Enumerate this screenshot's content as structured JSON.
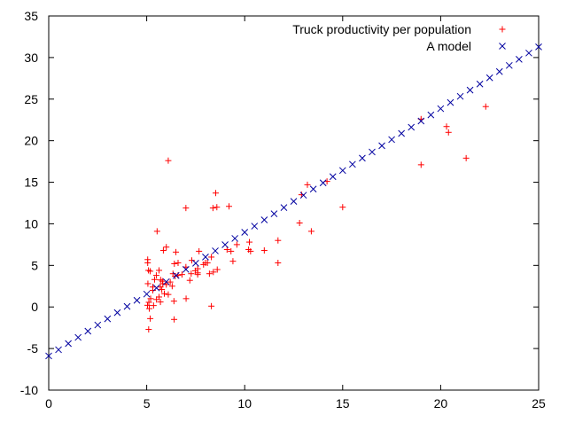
{
  "chart_data": {
    "type": "scatter",
    "title": "",
    "xlabel": "",
    "ylabel": "",
    "xlim": [
      0,
      25
    ],
    "ylim": [
      -10,
      35
    ],
    "xticks": [
      0,
      5,
      10,
      15,
      20,
      25
    ],
    "yticks": [
      -10,
      -5,
      0,
      5,
      10,
      15,
      20,
      25,
      30,
      35
    ],
    "grid": false,
    "legend_position": "top-right",
    "series": [
      {
        "name": "Truck productivity per population",
        "marker": "plus",
        "color": "#ff0000",
        "points": [
          [
            6.1,
            17.6
          ],
          [
            5.53,
            9.1
          ],
          [
            8.52,
            13.7
          ],
          [
            7.0,
            11.9
          ],
          [
            5.85,
            6.8
          ],
          [
            8.38,
            11.9
          ],
          [
            7.48,
            4.35
          ],
          [
            8.58,
            12.0
          ],
          [
            6.49,
            6.6
          ],
          [
            5.05,
            5.7
          ],
          [
            5.71,
            3.25
          ],
          [
            6.34,
            4.0
          ],
          [
            5.11,
            0.56
          ],
          [
            5.49,
            3.8
          ],
          [
            6.41,
            5.2
          ],
          [
            6.39,
            0.7
          ],
          [
            5.18,
            -1.4
          ],
          [
            5.31,
            2.0
          ],
          [
            5.06,
            2.8
          ],
          [
            5.63,
            1.2
          ],
          [
            6.0,
            2.7
          ],
          [
            5.05,
            5.3
          ],
          [
            5.09,
            4.4
          ],
          [
            5.04,
            0.2
          ],
          [
            5.9,
            1.6
          ],
          [
            7.01,
            1.0
          ],
          [
            5.35,
            0.17
          ],
          [
            5.63,
            4.4
          ],
          [
            6.0,
            7.2
          ],
          [
            5.77,
            2.1
          ],
          [
            5.31,
            2.4
          ],
          [
            5.18,
            4.3
          ],
          [
            5.82,
            2.8
          ],
          [
            7.67,
            6.7
          ],
          [
            8.0,
            5.3
          ],
          [
            8.2,
            4.0
          ],
          [
            8.4,
            4.2
          ],
          [
            7.9,
            5.1
          ],
          [
            7.27,
            4.0
          ],
          [
            7.6,
            3.9
          ],
          [
            9.1,
            6.9
          ],
          [
            9.3,
            6.7
          ],
          [
            10.24,
            7.8
          ],
          [
            10.2,
            6.9
          ],
          [
            11.0,
            6.8
          ],
          [
            12.8,
            10.1
          ],
          [
            14.2,
            15.1
          ],
          [
            13.2,
            14.7
          ],
          [
            15.0,
            12.0
          ],
          [
            12.9,
            13.5
          ],
          [
            10.3,
            6.7
          ],
          [
            9.4,
            5.5
          ],
          [
            8.6,
            4.5
          ],
          [
            6.6,
            5.3
          ],
          [
            6.8,
            3.9
          ],
          [
            7.3,
            5.6
          ],
          [
            7.6,
            4.1
          ],
          [
            7.0,
            4.8
          ],
          [
            6.2,
            3.0
          ],
          [
            5.7,
            2.4
          ],
          [
            5.4,
            3.3
          ],
          [
            5.2,
            1.0
          ],
          [
            5.13,
            -0.2
          ],
          [
            5.7,
            0.6
          ],
          [
            6.1,
            1.5
          ],
          [
            6.45,
            3.7
          ],
          [
            7.2,
            3.2
          ],
          [
            7.6,
            4.6
          ],
          [
            8.1,
            5.3
          ],
          [
            9.2,
            12.1
          ],
          [
            9.6,
            7.5
          ],
          [
            11.7,
            5.3
          ],
          [
            11.7,
            8.0
          ],
          [
            13.4,
            9.1
          ],
          [
            8.3,
            0.1
          ],
          [
            6.4,
            -1.5
          ],
          [
            5.1,
            -2.7
          ],
          [
            8.3,
            6.0
          ],
          [
            19.0,
            22.6
          ],
          [
            20.3,
            21.7
          ],
          [
            20.4,
            21.0
          ],
          [
            22.3,
            24.1
          ],
          [
            21.3,
            17.9
          ],
          [
            19.0,
            17.1
          ],
          [
            6.6,
            3.8
          ],
          [
            6.3,
            2.5
          ],
          [
            5.5,
            0.9
          ],
          [
            5.8,
            3.1
          ]
        ]
      },
      {
        "name": "A model",
        "marker": "cross",
        "color": "#0000a0",
        "points": [
          [
            0,
            -5.89
          ],
          [
            0.5,
            -5.14
          ],
          [
            1,
            -4.4
          ],
          [
            1.5,
            -3.66
          ],
          [
            2,
            -2.91
          ],
          [
            2.5,
            -2.17
          ],
          [
            3,
            -1.43
          ],
          [
            3.5,
            -0.68
          ],
          [
            4,
            0.06
          ],
          [
            4.5,
            0.8
          ],
          [
            5,
            1.55
          ],
          [
            5.5,
            2.29
          ],
          [
            6,
            3.03
          ],
          [
            6.5,
            3.78
          ],
          [
            7,
            4.52
          ],
          [
            7.5,
            5.26
          ],
          [
            8,
            6.01
          ],
          [
            8.5,
            6.75
          ],
          [
            9,
            7.49
          ],
          [
            9.5,
            8.24
          ],
          [
            10,
            8.98
          ],
          [
            10.5,
            9.72
          ],
          [
            11,
            10.47
          ],
          [
            11.5,
            11.21
          ],
          [
            12,
            11.95
          ],
          [
            12.5,
            12.7
          ],
          [
            13,
            13.44
          ],
          [
            13.5,
            14.18
          ],
          [
            14,
            14.93
          ],
          [
            14.5,
            15.67
          ],
          [
            15,
            16.41
          ],
          [
            15.5,
            17.16
          ],
          [
            16,
            17.9
          ],
          [
            16.5,
            18.64
          ],
          [
            17,
            19.39
          ],
          [
            17.5,
            20.13
          ],
          [
            18,
            20.87
          ],
          [
            18.5,
            21.62
          ],
          [
            19,
            22.36
          ],
          [
            19.5,
            23.1
          ],
          [
            20,
            23.85
          ],
          [
            20.5,
            24.59
          ],
          [
            21,
            25.33
          ],
          [
            21.5,
            26.08
          ],
          [
            22,
            26.82
          ],
          [
            22.5,
            27.56
          ],
          [
            23,
            28.31
          ],
          [
            23.5,
            29.05
          ],
          [
            24,
            29.79
          ],
          [
            24.5,
            30.54
          ],
          [
            25,
            31.28
          ]
        ]
      }
    ]
  }
}
